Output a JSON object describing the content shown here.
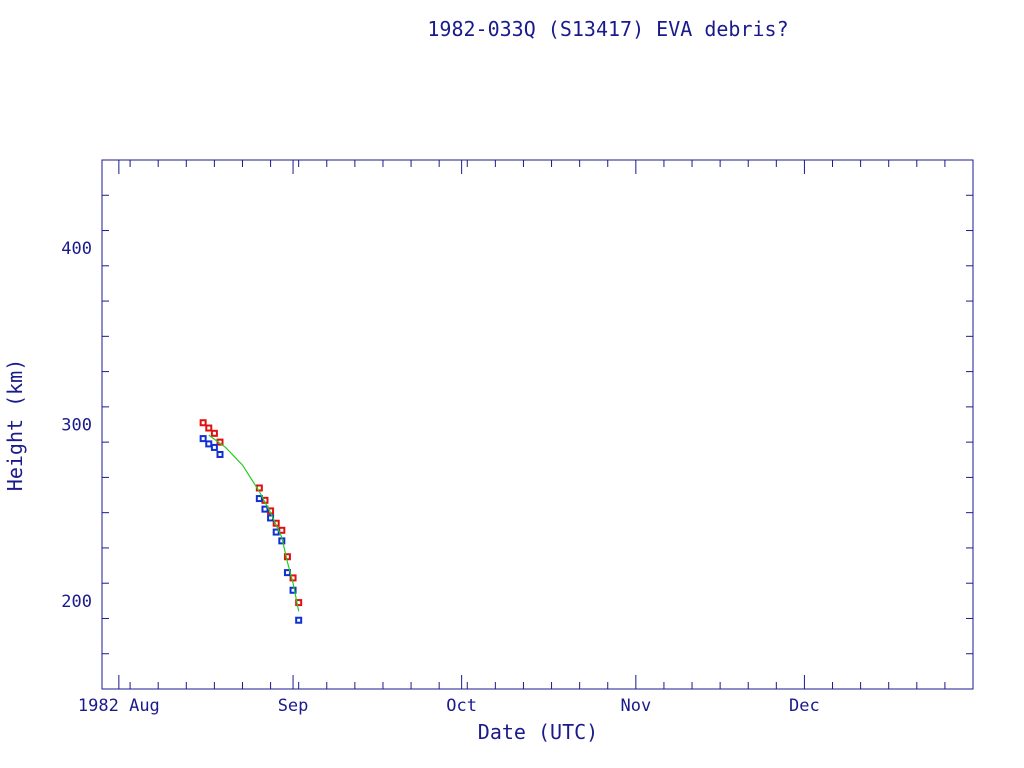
{
  "colors": {
    "axis": "#1a1a8c",
    "text": "#1a1a8c",
    "apogee": "#e01010",
    "perigee": "#1030d0",
    "fit": "#22cc22"
  },
  "chart_data": {
    "type": "scatter",
    "title": "1982-033Q (S13417) EVA debris?",
    "xlabel": "Date (UTC)",
    "ylabel": "Height (km)",
    "xlim": [
      "1982-07-29",
      "1982-12-31"
    ],
    "ylim": [
      150,
      450
    ],
    "grid": false,
    "x_ticks": [
      {
        "date": "1982-08-01",
        "label": "1982 Aug"
      },
      {
        "date": "1982-09-01",
        "label": "Sep"
      },
      {
        "date": "1982-10-01",
        "label": "Oct"
      },
      {
        "date": "1982-11-01",
        "label": "Nov"
      },
      {
        "date": "1982-12-01",
        "label": "Dec"
      }
    ],
    "y_ticks": [
      200,
      300,
      400
    ],
    "series": [
      {
        "key": "apogee",
        "marker": "square",
        "points": [
          {
            "x": "1982-08-16",
            "y": 301
          },
          {
            "x": "1982-08-17",
            "y": 298
          },
          {
            "x": "1982-08-18",
            "y": 295
          },
          {
            "x": "1982-08-19",
            "y": 290
          },
          {
            "x": "1982-08-26",
            "y": 264
          },
          {
            "x": "1982-08-27",
            "y": 257
          },
          {
            "x": "1982-08-28",
            "y": 251
          },
          {
            "x": "1982-08-29",
            "y": 244
          },
          {
            "x": "1982-08-30",
            "y": 240
          },
          {
            "x": "1982-08-31",
            "y": 225
          },
          {
            "x": "1982-09-01",
            "y": 213
          },
          {
            "x": "1982-09-02",
            "y": 199
          }
        ]
      },
      {
        "key": "perigee",
        "marker": "square",
        "points": [
          {
            "x": "1982-08-16",
            "y": 292
          },
          {
            "x": "1982-08-17",
            "y": 289
          },
          {
            "x": "1982-08-18",
            "y": 287
          },
          {
            "x": "1982-08-19",
            "y": 283
          },
          {
            "x": "1982-08-26",
            "y": 258
          },
          {
            "x": "1982-08-27",
            "y": 252
          },
          {
            "x": "1982-08-28",
            "y": 247
          },
          {
            "x": "1982-08-29",
            "y": 239
          },
          {
            "x": "1982-08-30",
            "y": 234
          },
          {
            "x": "1982-08-31",
            "y": 216
          },
          {
            "x": "1982-09-01",
            "y": 206
          },
          {
            "x": "1982-09-02",
            "y": 189
          }
        ]
      },
      {
        "key": "fit",
        "marker": "line",
        "points": [
          {
            "x": "1982-08-17",
            "y": 294
          },
          {
            "x": "1982-08-20",
            "y": 287
          },
          {
            "x": "1982-08-23",
            "y": 277
          },
          {
            "x": "1982-08-26",
            "y": 262
          },
          {
            "x": "1982-08-28",
            "y": 250
          },
          {
            "x": "1982-08-30",
            "y": 236
          },
          {
            "x": "1982-08-31",
            "y": 222
          },
          {
            "x": "1982-09-01",
            "y": 210
          },
          {
            "x": "1982-09-02",
            "y": 194
          }
        ]
      }
    ]
  }
}
